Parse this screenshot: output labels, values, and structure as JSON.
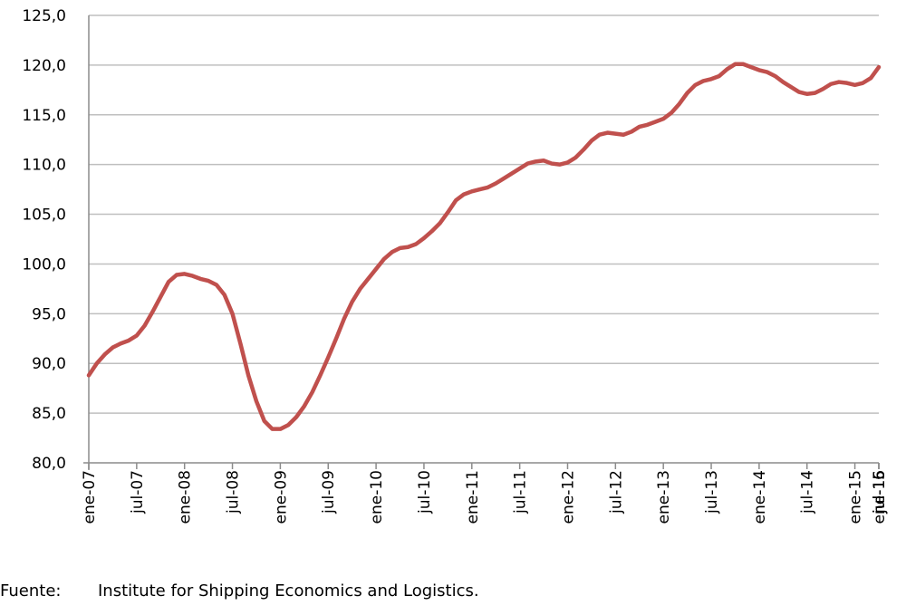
{
  "source": {
    "label": "Fuente:",
    "text": "Institute for Shipping Economics and Logistics."
  },
  "chart_data": {
    "type": "line",
    "title": "",
    "xlabel": "",
    "ylabel": "",
    "ylim": [
      80,
      125
    ],
    "ytick_step": 5,
    "ytick_labels": [
      "80,0",
      "85,0",
      "90,0",
      "95,0",
      "100,0",
      "105,0",
      "110,0",
      "115,0",
      "120,0",
      "125,0"
    ],
    "x_tick_labels": [
      "ene-07",
      "jul-07",
      "ene-08",
      "jul-08",
      "ene-09",
      "jul-09",
      "ene-10",
      "jul-10",
      "ene-11",
      "jul-11",
      "ene-12",
      "jul-12",
      "ene-13",
      "jul-13",
      "ene-14",
      "jul-14",
      "ene-15",
      "jul-15",
      "ene-16",
      "jul-16"
    ],
    "x_tick_every_months": 6,
    "grid": true,
    "line_color": "#c0504d",
    "series": [
      {
        "values": [
          88.8,
          90.0,
          90.9,
          91.6,
          92.0,
          92.3,
          92.8,
          93.8,
          95.2,
          96.7,
          98.2,
          98.9,
          99.0,
          98.8,
          98.5,
          98.3,
          97.9,
          96.9,
          95.0,
          92.0,
          88.8,
          86.2,
          84.2,
          83.4,
          83.4,
          83.8,
          84.6,
          85.7,
          87.1,
          88.8,
          90.6,
          92.5,
          94.5,
          96.2,
          97.5,
          98.5,
          99.5,
          100.5,
          101.2,
          101.6,
          101.7,
          102.0,
          102.6,
          103.3,
          104.1,
          105.2,
          106.4,
          107.0,
          107.3,
          107.5,
          107.7,
          108.1,
          108.6,
          109.1,
          109.6,
          110.1,
          110.3,
          110.4,
          110.1,
          110.0,
          110.2,
          110.7,
          111.5,
          112.4,
          113.0,
          113.2,
          113.1,
          113.0,
          113.3,
          113.8,
          114.0,
          114.3,
          114.6,
          115.2,
          116.1,
          117.2,
          118.0,
          118.4,
          118.6,
          118.9,
          119.6,
          120.1,
          120.1,
          119.8,
          119.5,
          119.3,
          118.9,
          118.3,
          117.8,
          117.3,
          117.1,
          117.2,
          117.6,
          118.1,
          118.3,
          118.2,
          118.0,
          118.2,
          118.7,
          119.8
        ]
      }
    ]
  }
}
